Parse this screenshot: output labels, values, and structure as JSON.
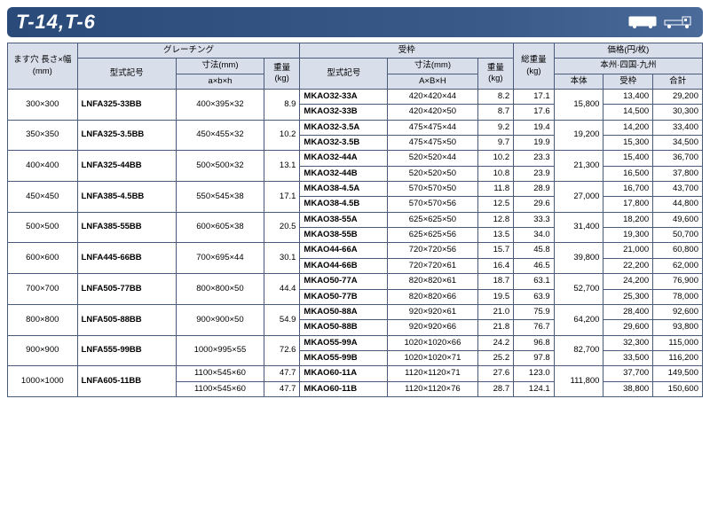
{
  "title": "T-14,T-6",
  "headers": {
    "size": "ます穴\n長さ×幅\n(mm)",
    "grating": "グレーチング",
    "frame": "受枠",
    "totalwt": "総重量\n(kg)",
    "price": "価格(円/枚)",
    "model": "型式記号",
    "dim_mm": "寸法(mm)",
    "weight": "重量\n(kg)",
    "axbxh_l": "a×b×h",
    "axbxh_u": "A×B×H",
    "region": "本州·四国·九州",
    "body": "本体",
    "frame_p": "受枠",
    "total": "合計"
  },
  "rows": [
    {
      "size": "300×300",
      "gm": "LNFA325-33BB",
      "gd": "400×395×32",
      "gw": "8.9",
      "sub": [
        {
          "fm": "MKAO32-33A",
          "fd": "420×420×44",
          "fw": "8.2",
          "tw": "17.1",
          "pb": "15,800",
          "pf": "13,400",
          "pt": "29,200"
        },
        {
          "fm": "MKAO32-33B",
          "fd": "420×420×50",
          "fw": "8.7",
          "tw": "17.6",
          "pb": "",
          "pf": "14,500",
          "pt": "30,300"
        }
      ]
    },
    {
      "size": "350×350",
      "gm": "LNFA325-3.5BB",
      "gd": "450×455×32",
      "gw": "10.2",
      "sub": [
        {
          "fm": "MKAO32-3.5A",
          "fd": "475×475×44",
          "fw": "9.2",
          "tw": "19.4",
          "pb": "19,200",
          "pf": "14,200",
          "pt": "33,400"
        },
        {
          "fm": "MKAO32-3.5B",
          "fd": "475×475×50",
          "fw": "9.7",
          "tw": "19.9",
          "pb": "",
          "pf": "15,300",
          "pt": "34,500"
        }
      ]
    },
    {
      "size": "400×400",
      "gm": "LNFA325-44BB",
      "gd": "500×500×32",
      "gw": "13.1",
      "sub": [
        {
          "fm": "MKAO32-44A",
          "fd": "520×520×44",
          "fw": "10.2",
          "tw": "23.3",
          "pb": "21,300",
          "pf": "15,400",
          "pt": "36,700"
        },
        {
          "fm": "MKAO32-44B",
          "fd": "520×520×50",
          "fw": "10.8",
          "tw": "23.9",
          "pb": "",
          "pf": "16,500",
          "pt": "37,800"
        }
      ]
    },
    {
      "size": "450×450",
      "gm": "LNFA385-4.5BB",
      "gd": "550×545×38",
      "gw": "17.1",
      "sub": [
        {
          "fm": "MKAO38-4.5A",
          "fd": "570×570×50",
          "fw": "11.8",
          "tw": "28.9",
          "pb": "27,000",
          "pf": "16,700",
          "pt": "43,700"
        },
        {
          "fm": "MKAO38-4.5B",
          "fd": "570×570×56",
          "fw": "12.5",
          "tw": "29.6",
          "pb": "",
          "pf": "17,800",
          "pt": "44,800"
        }
      ]
    },
    {
      "size": "500×500",
      "gm": "LNFA385-55BB",
      "gd": "600×605×38",
      "gw": "20.5",
      "sub": [
        {
          "fm": "MKAO38-55A",
          "fd": "625×625×50",
          "fw": "12.8",
          "tw": "33.3",
          "pb": "31,400",
          "pf": "18,200",
          "pt": "49,600"
        },
        {
          "fm": "MKAO38-55B",
          "fd": "625×625×56",
          "fw": "13.5",
          "tw": "34.0",
          "pb": "",
          "pf": "19,300",
          "pt": "50,700"
        }
      ]
    },
    {
      "size": "600×600",
      "gm": "LNFA445-66BB",
      "gd": "700×695×44",
      "gw": "30.1",
      "sub": [
        {
          "fm": "MKAO44-66A",
          "fd": "720×720×56",
          "fw": "15.7",
          "tw": "45.8",
          "pb": "39,800",
          "pf": "21,000",
          "pt": "60,800"
        },
        {
          "fm": "MKAO44-66B",
          "fd": "720×720×61",
          "fw": "16.4",
          "tw": "46.5",
          "pb": "",
          "pf": "22,200",
          "pt": "62,000"
        }
      ]
    },
    {
      "size": "700×700",
      "gm": "LNFA505-77BB",
      "gd": "800×800×50",
      "gw": "44.4",
      "sub": [
        {
          "fm": "MKAO50-77A",
          "fd": "820×820×61",
          "fw": "18.7",
          "tw": "63.1",
          "pb": "52,700",
          "pf": "24,200",
          "pt": "76,900"
        },
        {
          "fm": "MKAO50-77B",
          "fd": "820×820×66",
          "fw": "19.5",
          "tw": "63.9",
          "pb": "",
          "pf": "25,300",
          "pt": "78,000"
        }
      ]
    },
    {
      "size": "800×800",
      "gm": "LNFA505-88BB",
      "gd": "900×900×50",
      "gw": "54.9",
      "sub": [
        {
          "fm": "MKAO50-88A",
          "fd": "920×920×61",
          "fw": "21.0",
          "tw": "75.9",
          "pb": "64,200",
          "pf": "28,400",
          "pt": "92,600"
        },
        {
          "fm": "MKAO50-88B",
          "fd": "920×920×66",
          "fw": "21.8",
          "tw": "76.7",
          "pb": "",
          "pf": "29,600",
          "pt": "93,800"
        }
      ]
    },
    {
      "size": "900×900",
      "gm": "LNFA555-99BB",
      "gd": "1000×995×55",
      "gw": "72.6",
      "sub": [
        {
          "fm": "MKAO55-99A",
          "fd": "1020×1020×66",
          "fw": "24.2",
          "tw": "96.8",
          "pb": "82,700",
          "pf": "32,300",
          "pt": "115,000"
        },
        {
          "fm": "MKAO55-99B",
          "fd": "1020×1020×71",
          "fw": "25.2",
          "tw": "97.8",
          "pb": "",
          "pf": "33,500",
          "pt": "116,200"
        }
      ]
    },
    {
      "size": "1000×1000",
      "gm": "LNFA605-11BB",
      "gd": "1100×545×60",
      "gw": "47.7",
      "gd2": "1100×545×60",
      "gw2": "47.7",
      "sub": [
        {
          "fm": "MKAO60-11A",
          "fd": "1120×1120×71",
          "fw": "27.6",
          "tw": "123.0",
          "pb": "111,800",
          "pf": "37,700",
          "pt": "149,500"
        },
        {
          "fm": "MKAO60-11B",
          "fd": "1120×1120×76",
          "fw": "28.7",
          "tw": "124.1",
          "pb": "",
          "pf": "38,800",
          "pt": "150,600"
        }
      ]
    }
  ]
}
